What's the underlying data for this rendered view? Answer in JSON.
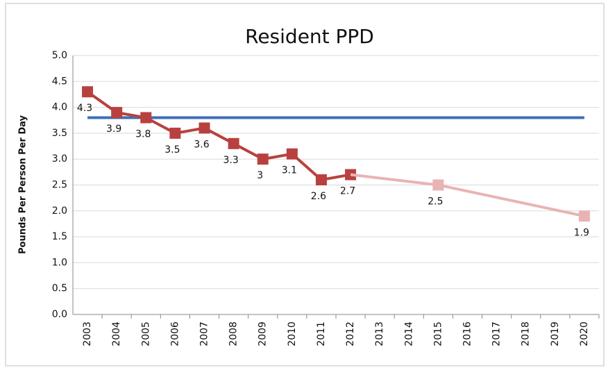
{
  "chart_data": {
    "type": "line",
    "title": "Resident PPD",
    "ylabel": "Pounds Per Person Per Day",
    "xlim": [
      2002.5,
      2020.5
    ],
    "xticks": [
      2003,
      2004,
      2005,
      2006,
      2007,
      2008,
      2009,
      2010,
      2011,
      2012,
      2013,
      2014,
      2015,
      2016,
      2017,
      2018,
      2019,
      2020
    ],
    "ylim": [
      0,
      5
    ],
    "yticks": [
      {
        "value": 0,
        "label": "0.0"
      },
      {
        "value": 0.5,
        "label": "0.5"
      },
      {
        "value": 1,
        "label": "1.0"
      },
      {
        "value": 1.5,
        "label": "1.5"
      },
      {
        "value": 2,
        "label": "2.0"
      },
      {
        "value": 2.5,
        "label": "2.5"
      },
      {
        "value": 3,
        "label": "3.0"
      },
      {
        "value": 3.5,
        "label": "3.5"
      },
      {
        "value": 4,
        "label": "4.0"
      },
      {
        "value": 4.5,
        "label": "4.5"
      },
      {
        "value": 5,
        "label": "5.0"
      }
    ],
    "grid": true,
    "series": [
      {
        "color": "#3f6fb8",
        "x": [
          2003,
          2020
        ],
        "values": [
          3.8,
          3.8
        ]
      },
      {
        "color": "#b8413f",
        "x": [
          2003,
          2004,
          2005,
          2006,
          2007,
          2008,
          2009,
          2010,
          2011,
          2012
        ],
        "values": [
          4.3,
          3.9,
          3.8,
          3.5,
          3.6,
          3.3,
          3,
          3.1,
          2.6,
          2.7
        ],
        "markers": true,
        "labels": true
      },
      {
        "color": "#e8b4b3",
        "x": [
          2012,
          2015,
          2020
        ],
        "values": [
          2.7,
          2.5,
          1.9
        ],
        "markers": true,
        "labels": true
      }
    ]
  }
}
